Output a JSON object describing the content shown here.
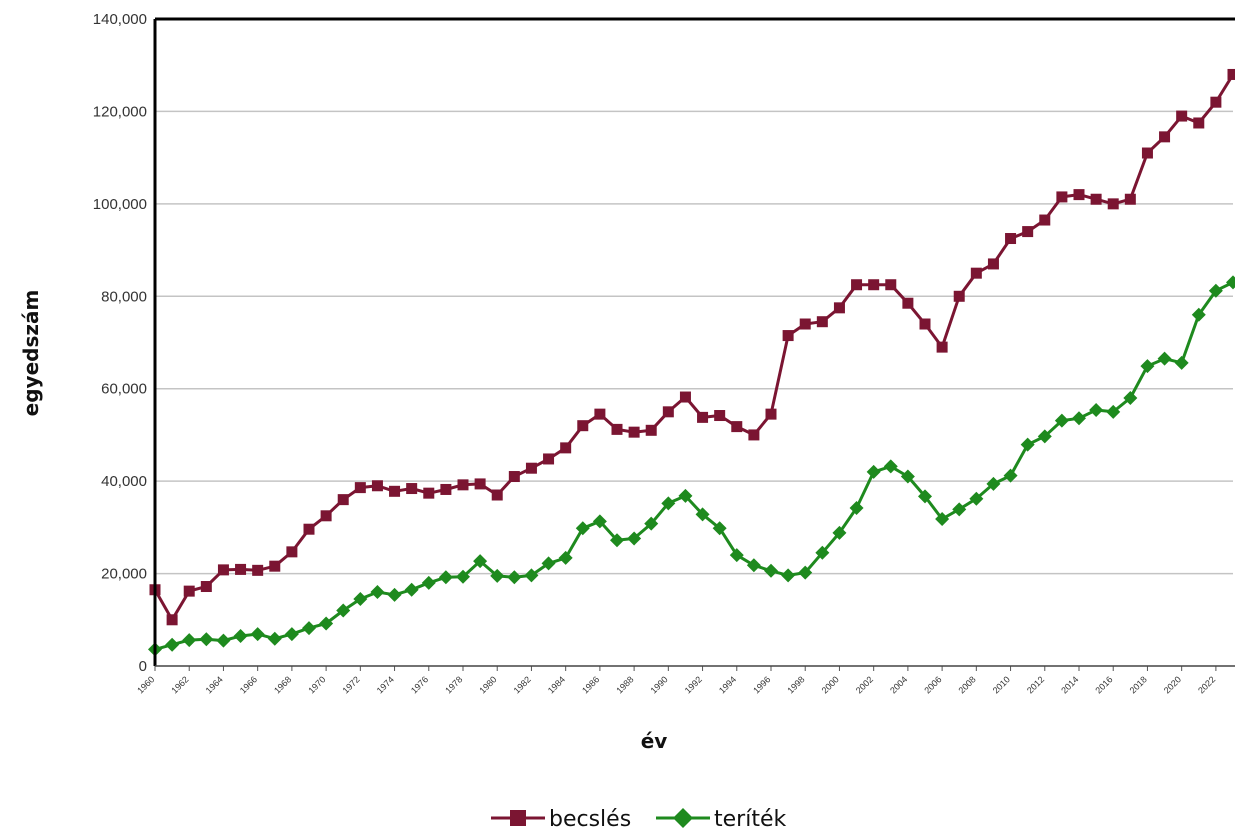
{
  "chart_data": {
    "type": "line",
    "title": "",
    "xlabel": "év",
    "ylabel": "egyedszám",
    "x": [
      1960,
      1961,
      1962,
      1963,
      1964,
      1965,
      1966,
      1967,
      1968,
      1969,
      1970,
      1971,
      1972,
      1973,
      1974,
      1975,
      1976,
      1977,
      1978,
      1979,
      1980,
      1981,
      1982,
      1983,
      1984,
      1985,
      1986,
      1987,
      1988,
      1989,
      1990,
      1991,
      1992,
      1993,
      1994,
      1995,
      1996,
      1997,
      1998,
      1999,
      2000,
      2001,
      2002,
      2003,
      2004,
      2005,
      2006,
      2007,
      2008,
      2009,
      2010,
      2011,
      2012,
      2013,
      2014,
      2015,
      2016,
      2017,
      2018,
      2019,
      2020,
      2021,
      2022,
      2023
    ],
    "xlim": [
      1960,
      2023
    ],
    "ylim": [
      0,
      140000
    ],
    "y_ticks": [
      0,
      20000,
      40000,
      60000,
      80000,
      100000,
      120000,
      140000
    ],
    "y_tick_labels": [
      "0",
      "20,000",
      "40,000",
      "60,000",
      "80,000",
      "100,000",
      "120,000",
      "140,000"
    ],
    "x_ticks": [
      1960,
      1962,
      1964,
      1966,
      1968,
      1970,
      1972,
      1974,
      1976,
      1978,
      1980,
      1982,
      1984,
      1986,
      1988,
      1990,
      1992,
      1994,
      1996,
      1998,
      2000,
      2002,
      2004,
      2006,
      2008,
      2010,
      2012,
      2014,
      2016,
      2018,
      2020,
      2022
    ],
    "grid": true,
    "legend_position": "bottom-center",
    "series": [
      {
        "name": "becslés",
        "color": "#7b1532",
        "marker": "square",
        "values": [
          16500,
          10000,
          16200,
          17200,
          20800,
          20900,
          20700,
          21600,
          24700,
          29600,
          32500,
          36000,
          38600,
          39000,
          37800,
          38400,
          37400,
          38200,
          39200,
          39400,
          37000,
          41000,
          42800,
          44800,
          47200,
          52000,
          54500,
          51200,
          50600,
          51000,
          55000,
          58200,
          53800,
          54200,
          51800,
          50000,
          54500,
          71500,
          74000,
          74500,
          77500,
          82500,
          82500,
          82500,
          78500,
          74000,
          69000,
          80000,
          85000,
          87000,
          92500,
          94000,
          96500,
          101500,
          102000,
          101000,
          100000,
          101000,
          111000,
          114500,
          119000,
          117500,
          122000,
          128000
        ]
      },
      {
        "name": "teríték",
        "color": "#1e8a1e",
        "marker": "diamond",
        "values": [
          3600,
          4600,
          5600,
          5800,
          5500,
          6500,
          6900,
          5900,
          6900,
          8200,
          9200,
          12000,
          14500,
          16000,
          15400,
          16500,
          18000,
          19200,
          19300,
          22700,
          19500,
          19200,
          19600,
          22200,
          23400,
          29800,
          31300,
          27200,
          27600,
          30800,
          35200,
          36800,
          32800,
          29800,
          24000,
          21800,
          20600,
          19600,
          20200,
          24500,
          28800,
          34200,
          42000,
          43200,
          41000,
          36700,
          31800,
          33900,
          36200,
          39400,
          41200,
          47900,
          49700,
          53100,
          53600,
          55400,
          55000,
          58000,
          64900,
          66500,
          65600,
          76000,
          81200,
          83000
        ]
      }
    ]
  }
}
